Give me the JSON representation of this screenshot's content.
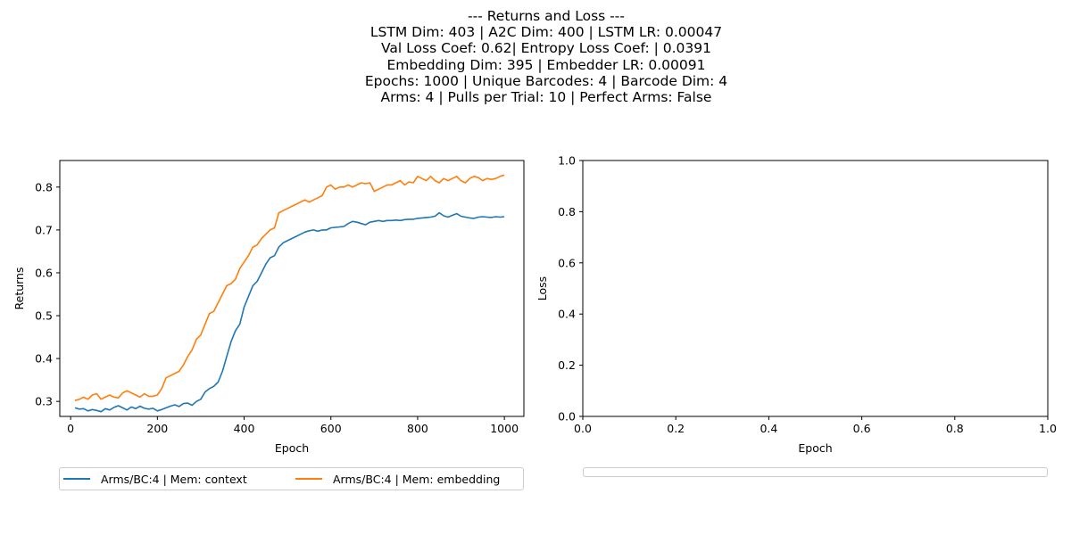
{
  "figure": {
    "title_lines": [
      "--- Returns and Loss ---",
      "LSTM Dim: 403 | A2C Dim: 400 | LSTM LR: 0.00047",
      "Val Loss Coef: 0.62| Entropy Loss Coef: | 0.0391",
      "Embedding Dim: 395 | Embedder LR: 0.00091",
      "Epochs: 1000 | Unique Barcodes: 4 | Barcode Dim: 4",
      "Arms: 4 | Pulls per Trial: 10 | Perfect Arms: False"
    ]
  },
  "chart_data": [
    {
      "type": "line",
      "xlabel": "Epoch",
      "ylabel": "Returns",
      "xlim": [
        -25,
        1045
      ],
      "ylim": [
        0.265,
        0.862
      ],
      "xticks": [
        0,
        200,
        400,
        600,
        800,
        1000
      ],
      "yticks": [
        0.3,
        0.4,
        0.5,
        0.6,
        0.7,
        0.8
      ],
      "xtick_labels": [
        "0",
        "200",
        "400",
        "600",
        "800",
        "1000"
      ],
      "ytick_labels": [
        "0.3",
        "0.4",
        "0.5",
        "0.6",
        "0.7",
        "0.8"
      ],
      "grid": false,
      "legend_placement": "below",
      "series": [
        {
          "name": "Arms/BC:4 | Mem: context",
          "color": "#1f77b4",
          "x": [
            10,
            20,
            30,
            40,
            50,
            60,
            70,
            80,
            90,
            100,
            110,
            120,
            130,
            140,
            150,
            160,
            170,
            180,
            190,
            200,
            210,
            220,
            230,
            240,
            250,
            260,
            270,
            280,
            290,
            300,
            310,
            320,
            330,
            340,
            350,
            360,
            370,
            380,
            390,
            400,
            410,
            420,
            430,
            440,
            450,
            460,
            470,
            480,
            490,
            500,
            510,
            520,
            530,
            540,
            550,
            560,
            570,
            580,
            590,
            600,
            610,
            620,
            630,
            640,
            650,
            660,
            670,
            680,
            690,
            700,
            710,
            720,
            730,
            740,
            750,
            760,
            770,
            780,
            790,
            800,
            810,
            820,
            830,
            840,
            850,
            860,
            870,
            880,
            890,
            900,
            910,
            920,
            930,
            940,
            950,
            960,
            970,
            980,
            990,
            1000
          ],
          "y": [
            0.285,
            0.282,
            0.283,
            0.278,
            0.281,
            0.279,
            0.276,
            0.283,
            0.28,
            0.286,
            0.29,
            0.285,
            0.28,
            0.287,
            0.283,
            0.289,
            0.284,
            0.282,
            0.284,
            0.278,
            0.281,
            0.285,
            0.289,
            0.292,
            0.288,
            0.295,
            0.296,
            0.291,
            0.3,
            0.305,
            0.322,
            0.33,
            0.335,
            0.345,
            0.37,
            0.405,
            0.44,
            0.465,
            0.48,
            0.52,
            0.545,
            0.57,
            0.58,
            0.6,
            0.62,
            0.635,
            0.64,
            0.66,
            0.67,
            0.675,
            0.68,
            0.685,
            0.69,
            0.695,
            0.698,
            0.7,
            0.697,
            0.7,
            0.7,
            0.705,
            0.706,
            0.707,
            0.708,
            0.715,
            0.72,
            0.718,
            0.715,
            0.712,
            0.718,
            0.72,
            0.722,
            0.72,
            0.722,
            0.722,
            0.723,
            0.722,
            0.724,
            0.725,
            0.725,
            0.727,
            0.728,
            0.729,
            0.73,
            0.732,
            0.74,
            0.733,
            0.73,
            0.734,
            0.738,
            0.732,
            0.73,
            0.728,
            0.727,
            0.73,
            0.731,
            0.73,
            0.729,
            0.731,
            0.73,
            0.731
          ]
        },
        {
          "name": "Arms/BC:4 | Mem: embedding",
          "color": "#ff7f0e",
          "x": [
            10,
            20,
            30,
            40,
            50,
            60,
            70,
            80,
            90,
            100,
            110,
            120,
            130,
            140,
            150,
            160,
            170,
            180,
            190,
            200,
            210,
            220,
            230,
            240,
            250,
            260,
            270,
            280,
            290,
            300,
            310,
            320,
            330,
            340,
            350,
            360,
            370,
            380,
            390,
            400,
            410,
            420,
            430,
            440,
            450,
            460,
            470,
            480,
            490,
            500,
            510,
            520,
            530,
            540,
            550,
            560,
            570,
            580,
            590,
            600,
            610,
            620,
            630,
            640,
            650,
            660,
            670,
            680,
            690,
            700,
            710,
            720,
            730,
            740,
            750,
            760,
            770,
            780,
            790,
            800,
            810,
            820,
            830,
            840,
            850,
            860,
            870,
            880,
            890,
            900,
            910,
            920,
            930,
            940,
            950,
            960,
            970,
            980,
            990,
            1000
          ],
          "y": [
            0.302,
            0.305,
            0.31,
            0.305,
            0.315,
            0.318,
            0.305,
            0.31,
            0.315,
            0.31,
            0.308,
            0.32,
            0.325,
            0.32,
            0.315,
            0.31,
            0.318,
            0.312,
            0.312,
            0.315,
            0.33,
            0.355,
            0.36,
            0.365,
            0.37,
            0.385,
            0.405,
            0.42,
            0.445,
            0.455,
            0.48,
            0.505,
            0.51,
            0.53,
            0.55,
            0.57,
            0.575,
            0.585,
            0.61,
            0.625,
            0.64,
            0.66,
            0.665,
            0.68,
            0.69,
            0.7,
            0.705,
            0.74,
            0.745,
            0.75,
            0.755,
            0.76,
            0.765,
            0.77,
            0.765,
            0.77,
            0.775,
            0.78,
            0.8,
            0.805,
            0.795,
            0.8,
            0.8,
            0.805,
            0.8,
            0.805,
            0.81,
            0.808,
            0.81,
            0.79,
            0.795,
            0.8,
            0.805,
            0.805,
            0.81,
            0.815,
            0.805,
            0.812,
            0.81,
            0.825,
            0.82,
            0.815,
            0.825,
            0.815,
            0.81,
            0.82,
            0.815,
            0.82,
            0.825,
            0.815,
            0.81,
            0.82,
            0.825,
            0.822,
            0.815,
            0.82,
            0.818,
            0.82,
            0.825,
            0.828
          ]
        }
      ]
    },
    {
      "type": "line",
      "xlabel": "Epoch",
      "ylabel": "Loss",
      "xlim": [
        0.0,
        1.0
      ],
      "ylim": [
        0.0,
        1.0
      ],
      "xticks": [
        0.0,
        0.2,
        0.4,
        0.6,
        0.8,
        1.0
      ],
      "yticks": [
        0.0,
        0.2,
        0.4,
        0.6,
        0.8,
        1.0
      ],
      "xtick_labels": [
        "0.0",
        "0.2",
        "0.4",
        "0.6",
        "0.8",
        "1.0"
      ],
      "ytick_labels": [
        "0.0",
        "0.2",
        "0.4",
        "0.6",
        "0.8",
        "1.0"
      ],
      "grid": false,
      "legend_placement": "below",
      "series": []
    }
  ]
}
